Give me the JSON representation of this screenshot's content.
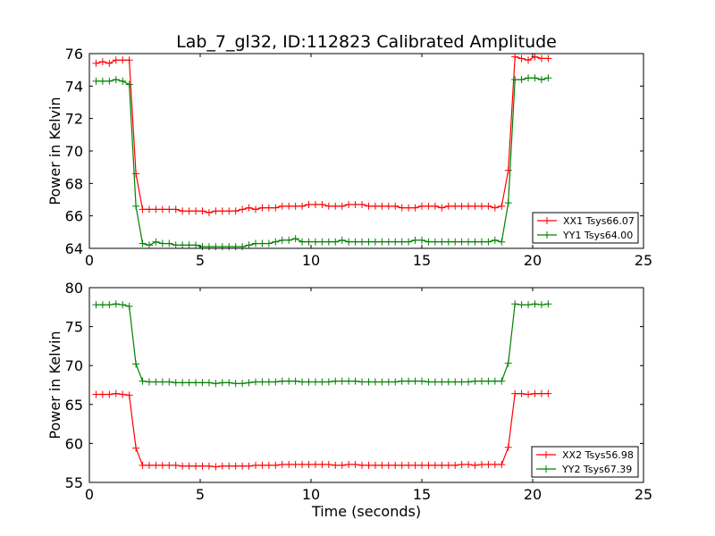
{
  "figure_title": "Lab_7_gl32, ID:112823 Calibrated Amplitude",
  "xlabel": "Time (seconds)",
  "chart_data": [
    {
      "type": "line",
      "title": "Lab_7_gl32, ID:112823 Calibrated Amplitude",
      "xlabel": "",
      "ylabel": "Power in Kelvin",
      "xlim": [
        0,
        25
      ],
      "ylim": [
        64,
        76
      ],
      "xticks": [
        "0",
        "5",
        "10",
        "15",
        "20",
        "25"
      ],
      "yticks": [
        "64",
        "66",
        "68",
        "70",
        "72",
        "74",
        "76"
      ],
      "grid": false,
      "legend_position": "lower-right",
      "x": [
        0.3,
        0.6,
        0.9,
        1.2,
        1.5,
        1.8,
        2.1,
        2.4,
        2.7,
        3.0,
        3.3,
        3.6,
        3.9,
        4.2,
        4.5,
        4.8,
        5.1,
        5.4,
        5.7,
        6.0,
        6.3,
        6.6,
        6.9,
        7.2,
        7.5,
        7.8,
        8.1,
        8.4,
        8.7,
        9.0,
        9.3,
        9.6,
        9.9,
        10.2,
        10.5,
        10.8,
        11.1,
        11.4,
        11.7,
        12.0,
        12.3,
        12.6,
        12.9,
        13.2,
        13.5,
        13.8,
        14.1,
        14.4,
        14.7,
        15.0,
        15.3,
        15.6,
        15.9,
        16.2,
        16.5,
        16.8,
        17.1,
        17.4,
        17.7,
        18.0,
        18.3,
        18.6,
        18.9,
        19.2,
        19.5,
        19.8,
        20.1,
        20.4,
        20.7
      ],
      "series": [
        {
          "name": "XX1 Tsys66.07",
          "color": "#ff0000",
          "values": [
            75.4,
            75.5,
            75.4,
            75.6,
            75.6,
            75.6,
            68.6,
            66.4,
            66.4,
            66.4,
            66.4,
            66.4,
            66.4,
            66.3,
            66.3,
            66.3,
            66.3,
            66.2,
            66.3,
            66.3,
            66.3,
            66.3,
            66.4,
            66.5,
            66.4,
            66.5,
            66.5,
            66.5,
            66.6,
            66.6,
            66.6,
            66.6,
            66.7,
            66.7,
            66.7,
            66.6,
            66.6,
            66.6,
            66.7,
            66.7,
            66.7,
            66.6,
            66.6,
            66.6,
            66.6,
            66.6,
            66.5,
            66.5,
            66.5,
            66.6,
            66.6,
            66.6,
            66.5,
            66.6,
            66.6,
            66.6,
            66.6,
            66.6,
            66.6,
            66.6,
            66.5,
            66.6,
            68.8,
            75.8,
            75.7,
            75.6,
            75.8,
            75.7,
            75.7
          ]
        },
        {
          "name": "YY1 Tsys64.00",
          "color": "#008000",
          "values": [
            74.3,
            74.3,
            74.3,
            74.4,
            74.3,
            74.1,
            66.6,
            64.3,
            64.2,
            64.4,
            64.3,
            64.3,
            64.2,
            64.2,
            64.2,
            64.2,
            64.1,
            64.1,
            64.1,
            64.1,
            64.1,
            64.1,
            64.1,
            64.2,
            64.3,
            64.3,
            64.3,
            64.4,
            64.5,
            64.5,
            64.6,
            64.4,
            64.4,
            64.4,
            64.4,
            64.4,
            64.4,
            64.5,
            64.4,
            64.4,
            64.4,
            64.4,
            64.4,
            64.4,
            64.4,
            64.4,
            64.4,
            64.4,
            64.5,
            64.5,
            64.4,
            64.4,
            64.4,
            64.4,
            64.4,
            64.4,
            64.4,
            64.4,
            64.4,
            64.4,
            64.5,
            64.4,
            66.8,
            74.4,
            74.4,
            74.5,
            74.5,
            74.4,
            74.5
          ]
        }
      ]
    },
    {
      "type": "line",
      "title": "",
      "xlabel": "Time (seconds)",
      "ylabel": "Power in Kelvin",
      "xlim": [
        0,
        25
      ],
      "ylim": [
        55,
        80
      ],
      "xticks": [
        "0",
        "5",
        "10",
        "15",
        "20",
        "25"
      ],
      "yticks": [
        "55",
        "60",
        "65",
        "70",
        "75",
        "80"
      ],
      "grid": false,
      "legend_position": "lower-right",
      "x": [
        0.3,
        0.6,
        0.9,
        1.2,
        1.5,
        1.8,
        2.1,
        2.4,
        2.7,
        3.0,
        3.3,
        3.6,
        3.9,
        4.2,
        4.5,
        4.8,
        5.1,
        5.4,
        5.7,
        6.0,
        6.3,
        6.6,
        6.9,
        7.2,
        7.5,
        7.8,
        8.1,
        8.4,
        8.7,
        9.0,
        9.3,
        9.6,
        9.9,
        10.2,
        10.5,
        10.8,
        11.1,
        11.4,
        11.7,
        12.0,
        12.3,
        12.6,
        12.9,
        13.2,
        13.5,
        13.8,
        14.1,
        14.4,
        14.7,
        15.0,
        15.3,
        15.6,
        15.9,
        16.2,
        16.5,
        16.8,
        17.1,
        17.4,
        17.7,
        18.0,
        18.3,
        18.6,
        18.9,
        19.2,
        19.5,
        19.8,
        20.1,
        20.4,
        20.7
      ],
      "series": [
        {
          "name": "XX2 Tsys56.98",
          "color": "#ff0000",
          "values": [
            66.3,
            66.3,
            66.3,
            66.4,
            66.3,
            66.2,
            59.4,
            57.2,
            57.2,
            57.2,
            57.2,
            57.2,
            57.2,
            57.1,
            57.1,
            57.1,
            57.1,
            57.1,
            57.0,
            57.1,
            57.1,
            57.1,
            57.1,
            57.1,
            57.2,
            57.2,
            57.2,
            57.2,
            57.3,
            57.3,
            57.3,
            57.3,
            57.3,
            57.3,
            57.3,
            57.3,
            57.2,
            57.2,
            57.3,
            57.3,
            57.2,
            57.2,
            57.2,
            57.2,
            57.2,
            57.2,
            57.2,
            57.2,
            57.2,
            57.2,
            57.2,
            57.2,
            57.2,
            57.2,
            57.2,
            57.3,
            57.3,
            57.2,
            57.3,
            57.3,
            57.3,
            57.3,
            59.5,
            66.4,
            66.4,
            66.3,
            66.4,
            66.4,
            66.4
          ]
        },
        {
          "name": "YY2 Tsys67.39",
          "color": "#008000",
          "values": [
            77.8,
            77.8,
            77.8,
            77.9,
            77.8,
            77.6,
            70.2,
            68.0,
            67.9,
            67.9,
            67.9,
            67.9,
            67.8,
            67.8,
            67.8,
            67.8,
            67.8,
            67.8,
            67.7,
            67.8,
            67.8,
            67.7,
            67.7,
            67.8,
            67.9,
            67.9,
            67.9,
            67.9,
            68.0,
            68.0,
            68.0,
            67.9,
            67.9,
            67.9,
            67.9,
            67.9,
            68.0,
            68.0,
            68.0,
            68.0,
            67.9,
            67.9,
            67.9,
            67.9,
            67.9,
            67.9,
            68.0,
            68.0,
            68.0,
            68.0,
            67.9,
            67.9,
            67.9,
            67.9,
            67.9,
            67.9,
            67.9,
            68.0,
            68.0,
            68.0,
            68.0,
            68.0,
            70.3,
            77.9,
            77.8,
            77.8,
            77.9,
            77.8,
            77.9
          ]
        }
      ]
    }
  ]
}
